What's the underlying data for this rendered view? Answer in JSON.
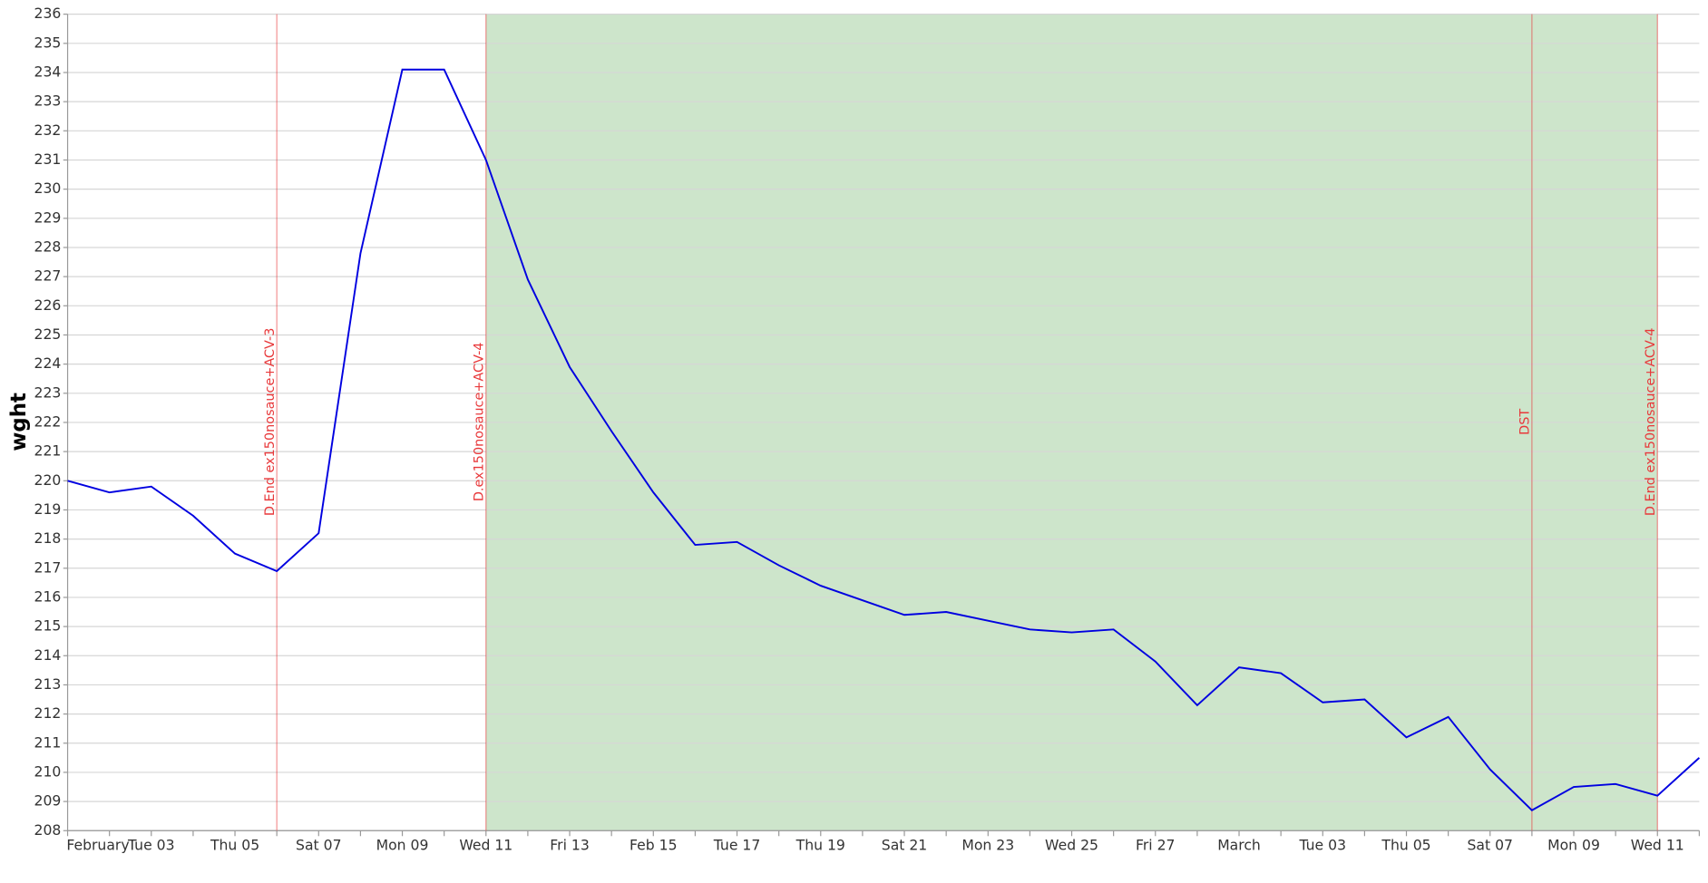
{
  "chart_data": {
    "type": "line",
    "y_label": "wght",
    "categories": [
      "February",
      null,
      "Tue 03",
      null,
      "Thu 05",
      null,
      "Sat 07",
      null,
      "Mon 09",
      null,
      "Wed 11",
      null,
      "Fri 13",
      null,
      "Feb 15",
      null,
      "Tue 17",
      null,
      "Thu 19",
      null,
      "Sat 21",
      null,
      "Mon 23",
      null,
      "Wed 25",
      null,
      "Fri 27",
      null,
      "March",
      null,
      "Tue 03",
      null,
      "Thu 05",
      null,
      "Sat 07",
      null,
      "Mon 09",
      null,
      "Wed 11",
      null
    ],
    "series": [
      {
        "name": "wght",
        "color": "#0000e0",
        "values": [
          220.0,
          219.6,
          219.8,
          218.8,
          217.5,
          216.9,
          218.2,
          227.8,
          234.1,
          234.1,
          231.0,
          226.9,
          223.9,
          221.7,
          219.6,
          217.8,
          217.9,
          217.1,
          216.4,
          215.9,
          215.4,
          215.5,
          215.2,
          214.9,
          214.8,
          214.9,
          213.8,
          212.3,
          213.6,
          213.4,
          212.4,
          212.5,
          211.2,
          211.9,
          210.1,
          208.7,
          209.5,
          209.6,
          209.2,
          210.5
        ]
      }
    ],
    "ylim": [
      208,
      236
    ],
    "yticks": [
      208,
      209,
      210,
      211,
      212,
      213,
      214,
      215,
      216,
      217,
      218,
      219,
      220,
      221,
      222,
      223,
      224,
      225,
      226,
      227,
      228,
      229,
      230,
      231,
      232,
      233,
      234,
      235,
      236
    ],
    "grid": true,
    "shaded_span": {
      "from": 10,
      "to": 38,
      "color": "#cde5cb"
    },
    "annotations": [
      {
        "text": "D.End ex150nosauce+ACV-3",
        "index": 5
      },
      {
        "text": "D.ex150nosauce+ACV-4",
        "index": 10
      },
      {
        "text": "DST",
        "index": 35
      },
      {
        "text": "D.End ex150nosauce+ACV-4",
        "index": 38
      }
    ],
    "annotation_color": "#e8383a"
  }
}
